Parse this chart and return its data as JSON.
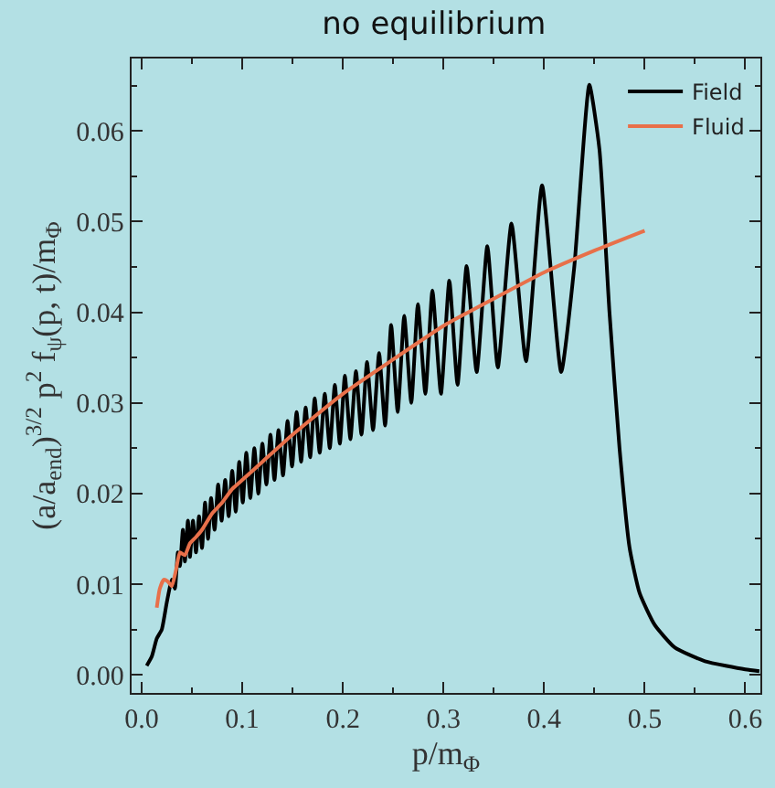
{
  "chart_data": {
    "type": "line",
    "title": "no equilibrium",
    "xlabel": "p/m$_{Φ}$",
    "ylabel": "(a/a$_{end}$)$^{3/2}$ p$^{2}$ f$_{ψ}$(p, t)/m$_{Φ}$",
    "xlim": [
      -0.01,
      0.615
    ],
    "ylim": [
      -0.002,
      0.068
    ],
    "xticks": [
      {
        "value": 0,
        "label": "0.0"
      },
      {
        "value": 0.1,
        "label": "0.1"
      },
      {
        "value": 0.2,
        "label": "0.2"
      },
      {
        "value": 0.3,
        "label": "0.3"
      },
      {
        "value": 0.4,
        "label": "0.4"
      },
      {
        "value": 0.5,
        "label": "0.5"
      },
      {
        "value": 0.6,
        "label": "0.6"
      }
    ],
    "yticks": [
      {
        "value": 0,
        "label": "0.00"
      },
      {
        "value": 0.01,
        "label": "0.01"
      },
      {
        "value": 0.02,
        "label": "0.02"
      },
      {
        "value": 0.03,
        "label": "0.03"
      },
      {
        "value": 0.04,
        "label": "0.04"
      },
      {
        "value": 0.05,
        "label": "0.05"
      },
      {
        "value": 0.06,
        "label": "0.06"
      }
    ],
    "grid": false,
    "legend": "top right",
    "marker": "none",
    "line_style": "solid",
    "series": [
      {
        "name": "Field",
        "color": "#000000",
        "x": [
          0.005,
          0.01,
          0.015,
          0.02,
          0.025,
          0.03,
          0.033,
          0.036,
          0.038,
          0.041,
          0.043,
          0.046,
          0.048,
          0.051,
          0.054,
          0.057,
          0.06,
          0.063,
          0.066,
          0.069,
          0.0725,
          0.076,
          0.0795,
          0.083,
          0.0865,
          0.09,
          0.0935,
          0.097,
          0.1005,
          0.104,
          0.108,
          0.112,
          0.116,
          0.12,
          0.124,
          0.128,
          0.132,
          0.136,
          0.1405,
          0.145,
          0.1495,
          0.154,
          0.1585,
          0.163,
          0.1675,
          0.172,
          0.177,
          0.182,
          0.187,
          0.192,
          0.197,
          0.202,
          0.2075,
          0.213,
          0.2185,
          0.224,
          0.23,
          0.236,
          0.242,
          0.248,
          0.2545,
          0.261,
          0.268,
          0.2746,
          0.282,
          0.289,
          0.2975,
          0.3058,
          0.314,
          0.323,
          0.333,
          0.3436,
          0.354,
          0.3676,
          0.382,
          0.398,
          0.417,
          0.43,
          0.445,
          0.455,
          0.465,
          0.475,
          0.485,
          0.495,
          0.51,
          0.53,
          0.56,
          0.6,
          0.614
        ],
        "values": [
          0.001,
          0.002,
          0.004,
          0.005,
          0.008,
          0.0105,
          0.0095,
          0.0135,
          0.012,
          0.016,
          0.0125,
          0.017,
          0.013,
          0.017,
          0.0135,
          0.0175,
          0.014,
          0.019,
          0.015,
          0.0195,
          0.016,
          0.021,
          0.017,
          0.0215,
          0.0175,
          0.0225,
          0.018,
          0.0235,
          0.019,
          0.0245,
          0.0195,
          0.025,
          0.02,
          0.0255,
          0.021,
          0.0265,
          0.0215,
          0.027,
          0.022,
          0.028,
          0.023,
          0.029,
          0.0235,
          0.0295,
          0.024,
          0.0305,
          0.0245,
          0.031,
          0.025,
          0.032,
          0.0255,
          0.033,
          0.026,
          0.0335,
          0.0265,
          0.0345,
          0.027,
          0.0355,
          0.0275,
          0.0386,
          0.029,
          0.0396,
          0.03,
          0.0409,
          0.031,
          0.0424,
          0.031,
          0.0435,
          0.032,
          0.0451,
          0.0334,
          0.0473,
          0.0339,
          0.0498,
          0.0346,
          0.054,
          0.0334,
          0.045,
          0.0651,
          0.058,
          0.04,
          0.025,
          0.014,
          0.009,
          0.0055,
          0.003,
          0.0015,
          0.0006,
          0.0004
        ]
      },
      {
        "name": "Fluid",
        "color": "#e8704a",
        "x": [
          0.015,
          0.018,
          0.022,
          0.026,
          0.03,
          0.034,
          0.038,
          0.043,
          0.048,
          0.054,
          0.06,
          0.07,
          0.08,
          0.09,
          0.1,
          0.12,
          0.15,
          0.2,
          0.25,
          0.3,
          0.35,
          0.4,
          0.45,
          0.5
        ],
        "values": [
          0.0074,
          0.0095,
          0.0105,
          0.0103,
          0.0098,
          0.0115,
          0.0135,
          0.0132,
          0.0145,
          0.0152,
          0.016,
          0.0178,
          0.019,
          0.0205,
          0.0215,
          0.0235,
          0.0265,
          0.031,
          0.0348,
          0.0385,
          0.0415,
          0.0444,
          0.0468,
          0.049
        ]
      }
    ]
  }
}
